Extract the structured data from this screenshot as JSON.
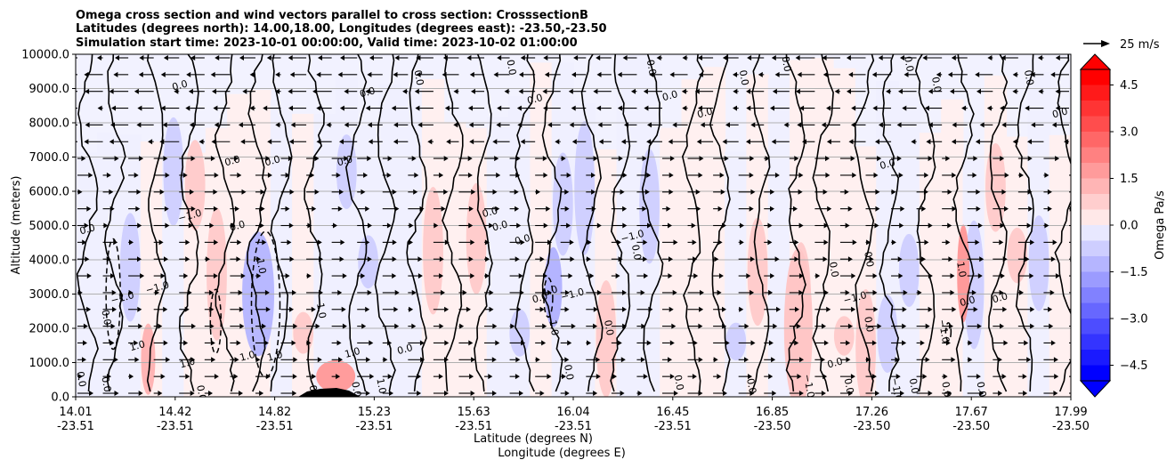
{
  "chart_data": {
    "type": "contour",
    "title_lines": [
      "Omega cross section and wind vectors parallel to cross section: CrosssectionB",
      "Latitudes (degrees north): 14.00,18.00, Longitudes (degrees east): -23.50,-23.50",
      "Simulation start time: 2023-10-01 00:00:00, Valid time: 2023-10-02 01:00:00"
    ],
    "xlabel_lines": [
      "Latitude (degrees N)",
      "Longitude (degrees E)"
    ],
    "ylabel": "Altitude (meters)",
    "ylim": [
      0,
      10000
    ],
    "xlim": [
      14.01,
      17.99
    ],
    "y_ticks": [
      "0.0",
      "1000.0",
      "2000.0",
      "3000.0",
      "4000.0",
      "5000.0",
      "6000.0",
      "7000.0",
      "8000.0",
      "9000.0",
      "10000.0"
    ],
    "x_ticks": [
      {
        "lat": "14.01",
        "lon": "-23.51"
      },
      {
        "lat": "14.42",
        "lon": "-23.51"
      },
      {
        "lat": "14.82",
        "lon": "-23.51"
      },
      {
        "lat": "15.23",
        "lon": "-23.51"
      },
      {
        "lat": "15.63",
        "lon": "-23.51"
      },
      {
        "lat": "16.04",
        "lon": "-23.51"
      },
      {
        "lat": "16.45",
        "lon": "-23.51"
      },
      {
        "lat": "16.85",
        "lon": "-23.50"
      },
      {
        "lat": "17.26",
        "lon": "-23.50"
      },
      {
        "lat": "17.67",
        "lon": "-23.50"
      },
      {
        "lat": "17.99",
        "lon": "-23.50"
      }
    ],
    "grid": "horizontal",
    "colorbar": {
      "label": "Omega Pa/s",
      "range": [
        -5,
        5
      ],
      "extend": "both",
      "ticks": [
        "4.5",
        "3.0",
        "1.5",
        "0.0",
        "−1.5",
        "−3.0",
        "−4.5"
      ],
      "colors": {
        "max": "#ff0000",
        "mid": "#ffffff",
        "min": "#0000ff",
        "near_zero_pos": "#fff0f0",
        "near_zero_neg": "#f0f0ff"
      }
    },
    "quiver_key": {
      "label": "25 m/s"
    },
    "contour_levels": [
      -1.0,
      0.0,
      1.0
    ],
    "contour_labels": [
      {
        "text": "0.0",
        "lat": 14.02,
        "alt": 500
      },
      {
        "text": "0.0",
        "lat": 14.06,
        "alt": 4800
      },
      {
        "text": "0.0",
        "lat": 14.12,
        "alt": 2300
      },
      {
        "text": "0.0",
        "lat": 14.12,
        "alt": 350
      },
      {
        "text": "−1.0",
        "lat": 14.2,
        "alt": 2800
      },
      {
        "text": "1.0",
        "lat": 14.26,
        "alt": 1400
      },
      {
        "text": "−1.0",
        "lat": 14.34,
        "alt": 3100
      },
      {
        "text": "0.0",
        "lat": 14.43,
        "alt": 9000
      },
      {
        "text": "−1.0",
        "lat": 14.47,
        "alt": 5200
      },
      {
        "text": "1.0",
        "lat": 14.46,
        "alt": 900
      },
      {
        "text": "0.0",
        "lat": 14.5,
        "alt": 100
      },
      {
        "text": "0.0",
        "lat": 14.64,
        "alt": 6800
      },
      {
        "text": "0.0",
        "lat": 14.66,
        "alt": 4900
      },
      {
        "text": "1.0",
        "lat": 14.7,
        "alt": 1100
      },
      {
        "text": "1.0",
        "lat": 14.74,
        "alt": 3800
      },
      {
        "text": "1.0",
        "lat": 14.81,
        "alt": 1100
      },
      {
        "text": "0.0",
        "lat": 14.8,
        "alt": 6800
      },
      {
        "text": "1.0",
        "lat": 14.98,
        "alt": 2500
      },
      {
        "text": "0.0",
        "lat": 14.95,
        "alt": 100
      },
      {
        "text": "0.0",
        "lat": 15.09,
        "alt": 6800
      },
      {
        "text": "1.0",
        "lat": 15.12,
        "alt": 1200
      },
      {
        "text": "0.0",
        "lat": 15.12,
        "alt": 200
      },
      {
        "text": "1.0",
        "lat": 15.22,
        "alt": 300
      },
      {
        "text": "0.0",
        "lat": 15.18,
        "alt": 8800
      },
      {
        "text": "0.0",
        "lat": 15.33,
        "alt": 1300
      },
      {
        "text": "0.0",
        "lat": 15.37,
        "alt": 9300
      },
      {
        "text": "0.0",
        "lat": 15.67,
        "alt": 5300
      },
      {
        "text": "0.0",
        "lat": 15.71,
        "alt": 4900
      },
      {
        "text": "0.0",
        "lat": 15.74,
        "alt": 9600
      },
      {
        "text": "0.0",
        "lat": 15.85,
        "alt": 8600
      },
      {
        "text": "0.0",
        "lat": 15.8,
        "alt": 4500
      },
      {
        "text": "0.0",
        "lat": 15.87,
        "alt": 2800
      },
      {
        "text": "1.0",
        "lat": 15.91,
        "alt": 3000
      },
      {
        "text": "1.0",
        "lat": 15.91,
        "alt": 2000
      },
      {
        "text": "−1.0",
        "lat": 16.0,
        "alt": 2900
      },
      {
        "text": "0.0",
        "lat": 15.97,
        "alt": 700
      },
      {
        "text": "0.0",
        "lat": 16.13,
        "alt": 2000
      },
      {
        "text": "−1.0",
        "lat": 16.24,
        "alt": 4600
      },
      {
        "text": "0.0",
        "lat": 16.24,
        "alt": 4200
      },
      {
        "text": "0.0",
        "lat": 16.3,
        "alt": 9600
      },
      {
        "text": "0.0",
        "lat": 16.39,
        "alt": 8700
      },
      {
        "text": "0.0",
        "lat": 16.41,
        "alt": 400
      },
      {
        "text": "0.0",
        "lat": 16.53,
        "alt": 8200
      },
      {
        "text": "0.0",
        "lat": 16.67,
        "alt": 9300
      },
      {
        "text": "0.0",
        "lat": 16.7,
        "alt": 300
      },
      {
        "text": "0.0",
        "lat": 16.84,
        "alt": 9700
      },
      {
        "text": "−1.0",
        "lat": 16.93,
        "alt": 300
      },
      {
        "text": "0.0",
        "lat": 17.03,
        "alt": 3700
      },
      {
        "text": "0.0",
        "lat": 17.05,
        "alt": 900
      },
      {
        "text": "0.0",
        "lat": 17.09,
        "alt": 300
      },
      {
        "text": "−1.0",
        "lat": 17.13,
        "alt": 2800
      },
      {
        "text": "0.0",
        "lat": 17.17,
        "alt": 4000
      },
      {
        "text": "0.0",
        "lat": 17.17,
        "alt": 2100
      },
      {
        "text": "0.0",
        "lat": 17.26,
        "alt": 6700
      },
      {
        "text": "−1.0",
        "lat": 17.28,
        "alt": 200
      },
      {
        "text": "0.0",
        "lat": 17.35,
        "alt": 300
      },
      {
        "text": "0.0",
        "lat": 17.33,
        "alt": 9700
      },
      {
        "text": "0.0",
        "lat": 17.44,
        "alt": 9100
      },
      {
        "text": "−1.0",
        "lat": 17.47,
        "alt": 1900
      },
      {
        "text": "0.0",
        "lat": 17.48,
        "alt": 200
      },
      {
        "text": "1.0",
        "lat": 17.54,
        "alt": 3700
      },
      {
        "text": "0.0",
        "lat": 17.58,
        "alt": 2700
      },
      {
        "text": "0.0",
        "lat": 17.62,
        "alt": 200
      },
      {
        "text": "0.0",
        "lat": 17.71,
        "alt": 2800
      },
      {
        "text": "0.0",
        "lat": 17.81,
        "alt": 9300
      },
      {
        "text": "0.0",
        "lat": 17.95,
        "alt": 8200
      }
    ]
  }
}
